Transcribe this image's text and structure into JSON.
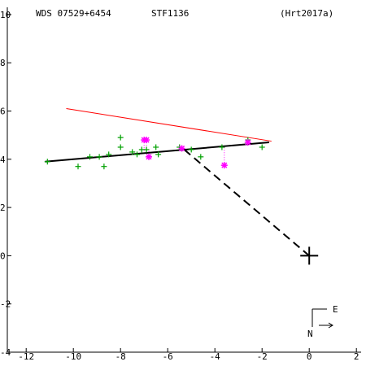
{
  "header": {
    "left": "WDS 07529+6454",
    "center": "STF1136",
    "right": "(Hrt2017a)"
  },
  "compass": {
    "east_label": "E",
    "north_label": "N"
  },
  "colors": {
    "axes": "#000000",
    "observations": "#00a000",
    "speckle": "#ff00ff",
    "orbit_line": "#ff0000",
    "fit_line": "#000000"
  },
  "chart_data": {
    "type": "scatter",
    "xlim": [
      -12.8,
      2.2
    ],
    "ylim": [
      -4.0,
      10.3
    ],
    "x_ticks": [
      -12,
      -10,
      -8,
      -6,
      -4,
      -2,
      0,
      2
    ],
    "y_ticks": [
      -4,
      -2,
      0,
      2,
      4,
      6,
      8,
      10
    ],
    "grid": false,
    "legend": "none",
    "primary_star": [
      0,
      0
    ],
    "series": [
      {
        "marker": "plus",
        "color": "#00a000",
        "points": [
          [
            -11.1,
            3.9
          ],
          [
            -9.8,
            3.7
          ],
          [
            -9.3,
            4.1
          ],
          [
            -8.9,
            4.1
          ],
          [
            -8.7,
            3.7
          ],
          [
            -8.5,
            4.2
          ],
          [
            -8.0,
            4.5
          ],
          [
            -8.0,
            4.9
          ],
          [
            -7.5,
            4.3
          ],
          [
            -7.3,
            4.2
          ],
          [
            -7.1,
            4.4
          ],
          [
            -6.9,
            4.4
          ],
          [
            -6.5,
            4.5
          ],
          [
            -6.4,
            4.2
          ],
          [
            -5.5,
            4.5
          ],
          [
            -5.0,
            4.4
          ],
          [
            -4.6,
            4.1
          ],
          [
            -3.7,
            4.5
          ],
          [
            -2.6,
            4.8
          ],
          [
            -2.0,
            4.5
          ]
        ]
      },
      {
        "marker": "asterisk",
        "color": "#ff00ff",
        "points": [
          [
            -7.0,
            4.8
          ],
          [
            -6.9,
            4.8
          ],
          [
            -6.8,
            4.1
          ],
          [
            -5.4,
            4.45
          ],
          [
            -3.6,
            3.75
          ],
          [
            -2.6,
            4.7
          ]
        ]
      }
    ],
    "residuals": [
      [
        [
          -7.0,
          4.8
        ],
        [
          -7.0,
          4.35
        ]
      ],
      [
        [
          -6.9,
          4.8
        ],
        [
          -6.9,
          4.36
        ]
      ],
      [
        [
          -6.8,
          4.1
        ],
        [
          -6.8,
          4.37
        ]
      ],
      [
        [
          -5.4,
          4.45
        ],
        [
          -5.4,
          4.45
        ]
      ],
      [
        [
          -3.6,
          3.75
        ],
        [
          -3.6,
          4.56
        ]
      ],
      [
        [
          -2.6,
          4.7
        ],
        [
          -2.6,
          4.63
        ]
      ]
    ],
    "lines": [
      {
        "role": "orbit",
        "color": "#ff0000",
        "style": "solid",
        "points": [
          [
            -10.3,
            6.1
          ],
          [
            -1.6,
            4.75
          ]
        ]
      },
      {
        "role": "fit",
        "color": "#000000",
        "style": "solid",
        "points": [
          [
            -11.2,
            3.9
          ],
          [
            -1.7,
            4.7
          ]
        ]
      },
      {
        "role": "periastron",
        "color": "#000000",
        "style": "dashed",
        "points": [
          [
            -5.3,
            4.4
          ],
          [
            0,
            0
          ]
        ]
      }
    ]
  }
}
